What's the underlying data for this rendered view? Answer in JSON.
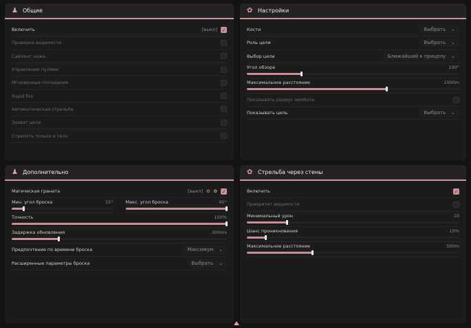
{
  "accent": "#c98f97",
  "panels": [
    {
      "title": "Общие",
      "icon": "person-icon",
      "rows": [
        {
          "type": "check",
          "label": "Включить",
          "tag": "[выкл]",
          "on": true
        },
        {
          "type": "check",
          "label": "Проверка видимости",
          "dim": true
        },
        {
          "type": "check",
          "label": "Сайлент ножа",
          "dim": true
        },
        {
          "type": "check",
          "label": "Управление пулями",
          "dim": true
        },
        {
          "type": "check",
          "label": "Мгновенные попадания",
          "dim": true
        },
        {
          "type": "check",
          "label": "Rapid fire",
          "dim": true
        },
        {
          "type": "check",
          "label": "Автоматическая стрельба",
          "dim": true
        },
        {
          "type": "check",
          "label": "Захват цели",
          "dim": true
        },
        {
          "type": "check",
          "label": "Стрелять только в тело",
          "dim": true
        }
      ]
    },
    {
      "title": "Настройки",
      "icon": "gear-icon",
      "rows": [
        {
          "type": "select",
          "label": "Кости",
          "value": "Выбрать"
        },
        {
          "type": "select",
          "label": "Роль цели",
          "value": "Выбрать"
        },
        {
          "type": "select",
          "label": "Выбор цели",
          "value": "Ближайший к прицелу"
        },
        {
          "type": "slider",
          "label": "Угол обзора",
          "value": "100°",
          "level": 0.26
        },
        {
          "type": "slider",
          "label": "Максимальное расстояние",
          "value": "1000m",
          "level": 0.66
        },
        {
          "type": "check",
          "label": "Показывать радиус аимбота",
          "dim": true
        },
        {
          "type": "select",
          "label": "Показывать цель",
          "value": "Выбрать"
        }
      ]
    },
    {
      "title": "Дополнительно",
      "icon": "person-icon",
      "rows": [
        {
          "type": "check",
          "label": "Магическая граната",
          "tag": "[выкл]",
          "on": true,
          "extra": true
        },
        {
          "type": "pair",
          "items": [
            {
              "label": "Мин. угол броска",
              "value": "15°",
              "level": 0.12
            },
            {
              "label": "Макс. угол броска",
              "value": "90°",
              "level": 1.0
            }
          ]
        },
        {
          "type": "slider",
          "label": "Точность",
          "value": "100%",
          "level": 1.0
        },
        {
          "type": "slider",
          "label": "Задержка обновления",
          "value": "300ms",
          "level": 0.22
        },
        {
          "type": "select",
          "label": "Предпочтение по времени броска",
          "value": "Максимум"
        },
        {
          "type": "select",
          "label": "Расширенные параметры броска",
          "value": "Выбрать"
        }
      ]
    },
    {
      "title": "Стрельба через стены",
      "icon": "gear-icon",
      "rows": [
        {
          "type": "check",
          "label": "Включить",
          "on": true
        },
        {
          "type": "check",
          "label": "Приоритет видимости",
          "dim": true
        },
        {
          "type": "slider",
          "label": "Минимальный урон",
          "value": "10",
          "level": 0.19
        },
        {
          "type": "slider",
          "label": "Шанс проникновения",
          "value": "10%",
          "level": 0.09
        },
        {
          "type": "slider",
          "label": "Максимальное расстояние",
          "value": "500m",
          "level": 0.31
        }
      ]
    }
  ]
}
